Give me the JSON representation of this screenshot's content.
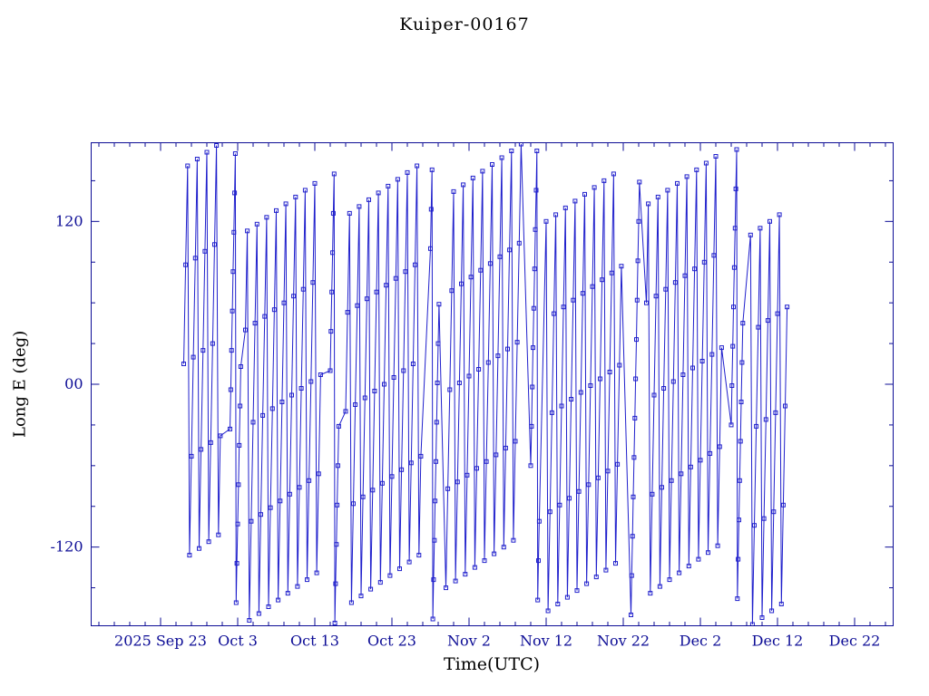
{
  "colors": {
    "text": "#0d0d96",
    "frame": "#0d0d96",
    "data": "#2020cc",
    "background": "#ffffff"
  },
  "chart_data": {
    "type": "line",
    "title": "Kuiper-00167",
    "xlabel": "Time(UTC)",
    "ylabel": "Long E (deg)",
    "t_unit": "days (0 = 2025 Sep 20, UTC)",
    "xlim": [
      -6,
      98
    ],
    "ylim": [
      -178,
      178
    ],
    "grid": false,
    "legend": false,
    "marker": "open-square",
    "x_ticks": [
      {
        "t": 3,
        "label": "2025 Sep 23"
      },
      {
        "t": 13,
        "label": "Oct 3"
      },
      {
        "t": 23,
        "label": "Oct 13"
      },
      {
        "t": 33,
        "label": "Oct 23"
      },
      {
        "t": 43,
        "label": "Nov 2"
      },
      {
        "t": 53,
        "label": "Nov 12"
      },
      {
        "t": 63,
        "label": "Nov 22"
      },
      {
        "t": 73,
        "label": "Dec 2"
      },
      {
        "t": 83,
        "label": "Dec 12"
      },
      {
        "t": 93,
        "label": "Dec 22"
      }
    ],
    "y_ticks": [
      {
        "value": -120,
        "label": "-120"
      },
      {
        "value": 0,
        "label": "00"
      },
      {
        "value": 120,
        "label": "120"
      }
    ],
    "series": [
      {
        "name": "long_e",
        "t": [
          6.0,
          6.25,
          6.5,
          6.75,
          7.0,
          7.25,
          7.5,
          7.75,
          8.0,
          8.25,
          8.5,
          8.75,
          9.0,
          9.25,
          9.5,
          9.75,
          10.0,
          10.25,
          10.5,
          10.75,
          12.0,
          12.1,
          12.2,
          12.3,
          12.4,
          12.5,
          12.6,
          12.7,
          12.8,
          12.9,
          13.0,
          13.1,
          13.2,
          13.3,
          13.4,
          14.0,
          14.25,
          14.5,
          14.75,
          15.0,
          15.25,
          15.5,
          15.75,
          16.0,
          16.25,
          16.5,
          16.75,
          17.0,
          17.25,
          17.5,
          17.75,
          18.0,
          18.25,
          18.5,
          18.75,
          19.0,
          19.25,
          19.5,
          19.75,
          20.0,
          20.25,
          20.5,
          20.75,
          21.0,
          21.25,
          21.5,
          21.75,
          22.0,
          22.25,
          22.5,
          22.75,
          23.0,
          23.25,
          23.5,
          23.75,
          25.0,
          25.1,
          25.2,
          25.3,
          25.4,
          25.5,
          25.6,
          25.7,
          25.8,
          25.9,
          26.0,
          26.1,
          27.0,
          27.25,
          27.5,
          27.75,
          28.0,
          28.25,
          28.5,
          28.75,
          29.0,
          29.25,
          29.5,
          29.75,
          30.0,
          30.25,
          30.5,
          30.75,
          31.0,
          31.25,
          31.5,
          31.75,
          32.0,
          32.25,
          32.5,
          32.75,
          33.0,
          33.25,
          33.5,
          33.75,
          34.0,
          34.25,
          34.5,
          34.75,
          35.0,
          35.25,
          35.5,
          35.75,
          36.0,
          36.25,
          36.5,
          36.75,
          38.0,
          38.1,
          38.2,
          38.3,
          38.4,
          38.5,
          38.6,
          38.7,
          38.8,
          38.9,
          39.0,
          39.1,
          40.0,
          40.25,
          40.5,
          40.75,
          41.0,
          41.25,
          41.5,
          41.75,
          42.0,
          42.25,
          42.5,
          42.75,
          43.0,
          43.25,
          43.5,
          43.75,
          44.0,
          44.25,
          44.5,
          44.75,
          45.0,
          45.25,
          45.5,
          45.75,
          46.0,
          46.25,
          46.5,
          46.75,
          47.0,
          47.25,
          47.5,
          47.75,
          48.0,
          48.25,
          48.5,
          48.75,
          49.0,
          49.25,
          49.5,
          49.75,
          51.0,
          51.1,
          51.2,
          51.3,
          51.4,
          51.5,
          51.6,
          51.7,
          51.8,
          51.9,
          52.0,
          52.1,
          53.0,
          53.25,
          53.5,
          53.75,
          54.0,
          54.25,
          54.5,
          54.75,
          55.0,
          55.25,
          55.5,
          55.75,
          56.0,
          56.25,
          56.5,
          56.75,
          57.0,
          57.25,
          57.5,
          57.75,
          58.0,
          58.25,
          58.5,
          58.75,
          59.0,
          59.25,
          59.5,
          59.75,
          60.0,
          60.25,
          60.5,
          60.75,
          61.0,
          61.25,
          61.5,
          61.75,
          62.0,
          62.25,
          62.5,
          62.75,
          64.0,
          64.1,
          64.2,
          64.3,
          64.4,
          64.5,
          64.6,
          64.7,
          64.8,
          64.9,
          65.0,
          65.1,
          66.0,
          66.25,
          66.5,
          66.75,
          67.0,
          67.25,
          67.5,
          67.75,
          68.0,
          68.25,
          68.5,
          68.75,
          69.0,
          69.25,
          69.5,
          69.75,
          70.0,
          70.25,
          70.5,
          70.75,
          71.0,
          71.25,
          71.5,
          71.75,
          72.0,
          72.25,
          72.5,
          72.75,
          73.0,
          73.25,
          73.5,
          73.75,
          74.0,
          74.25,
          74.5,
          74.75,
          75.0,
          75.25,
          75.5,
          75.75,
          77.0,
          77.1,
          77.2,
          77.3,
          77.4,
          77.5,
          77.6,
          77.7,
          77.8,
          77.9,
          78.0,
          78.1,
          78.2,
          78.3,
          78.4,
          78.5,
          79.5,
          79.75,
          80.0,
          80.25,
          80.5,
          80.75,
          81.0,
          81.25,
          81.5,
          81.75,
          82.0,
          82.25,
          82.5,
          82.75,
          83.0,
          83.25,
          83.5,
          83.75,
          84.0,
          84.25
        ],
        "lon": [
          15,
          88,
          161,
          -126,
          -53,
          20,
          93,
          166,
          -121,
          -48,
          25,
          98,
          171,
          -116,
          -43,
          30,
          103,
          176,
          -111,
          -38,
          -33,
          -4,
          25,
          54,
          83,
          112,
          141,
          170,
          -161,
          -132,
          -103,
          -74,
          -45,
          -16,
          13,
          40,
          113,
          -174,
          -101,
          -28,
          45,
          118,
          -169,
          -96,
          -23,
          50,
          123,
          -164,
          -91,
          -18,
          55,
          128,
          -159,
          -86,
          -13,
          60,
          133,
          -154,
          -81,
          -8,
          65,
          138,
          -149,
          -76,
          -3,
          70,
          143,
          -144,
          -71,
          2,
          75,
          148,
          -139,
          -66,
          7,
          10,
          39,
          68,
          97,
          126,
          155,
          -176,
          -147,
          -118,
          -89,
          -60,
          -31,
          -20,
          53,
          126,
          -161,
          -88,
          -15,
          58,
          131,
          -156,
          -83,
          -10,
          63,
          136,
          -151,
          -78,
          -5,
          68,
          141,
          -146,
          -73,
          0,
          73,
          146,
          -141,
          -68,
          5,
          78,
          151,
          -136,
          -63,
          10,
          83,
          156,
          -131,
          -58,
          15,
          88,
          161,
          -126,
          -53,
          100,
          129,
          158,
          -173,
          -144,
          -115,
          -86,
          -57,
          -28,
          1,
          30,
          59,
          -150,
          -77,
          -4,
          69,
          142,
          -145,
          -72,
          1,
          74,
          147,
          -140,
          -67,
          6,
          79,
          152,
          -135,
          -62,
          11,
          84,
          157,
          -130,
          -57,
          16,
          89,
          162,
          -125,
          -52,
          21,
          94,
          167,
          -120,
          -47,
          26,
          99,
          172,
          -115,
          -42,
          31,
          104,
          177,
          -60,
          -31,
          -2,
          27,
          56,
          85,
          114,
          143,
          172,
          -159,
          -130,
          -101,
          120,
          -167,
          -94,
          -21,
          52,
          125,
          -162,
          -89,
          -16,
          57,
          130,
          -157,
          -84,
          -11,
          62,
          135,
          -152,
          -79,
          -6,
          67,
          140,
          -147,
          -74,
          -1,
          72,
          145,
          -142,
          -69,
          4,
          77,
          150,
          -137,
          -64,
          9,
          82,
          155,
          -132,
          -59,
          14,
          87,
          -170,
          -141,
          -112,
          -83,
          -54,
          -25,
          4,
          33,
          62,
          91,
          120,
          149,
          60,
          133,
          -154,
          -81,
          -8,
          65,
          138,
          -149,
          -76,
          -3,
          70,
          143,
          -144,
          -71,
          2,
          75,
          148,
          -139,
          -66,
          7,
          80,
          153,
          -134,
          -61,
          12,
          85,
          158,
          -129,
          -56,
          17,
          90,
          163,
          -124,
          -51,
          22,
          95,
          168,
          -119,
          -46,
          27,
          -30,
          -1,
          28,
          57,
          86,
          115,
          144,
          173,
          -158,
          -129,
          -100,
          -71,
          -42,
          -13,
          16,
          45,
          110,
          -177,
          -104,
          -31,
          42,
          115,
          -172,
          -99,
          -26,
          47,
          120,
          -167,
          -94,
          -21,
          52,
          125,
          -162,
          -89,
          -16,
          57
        ]
      }
    ]
  }
}
